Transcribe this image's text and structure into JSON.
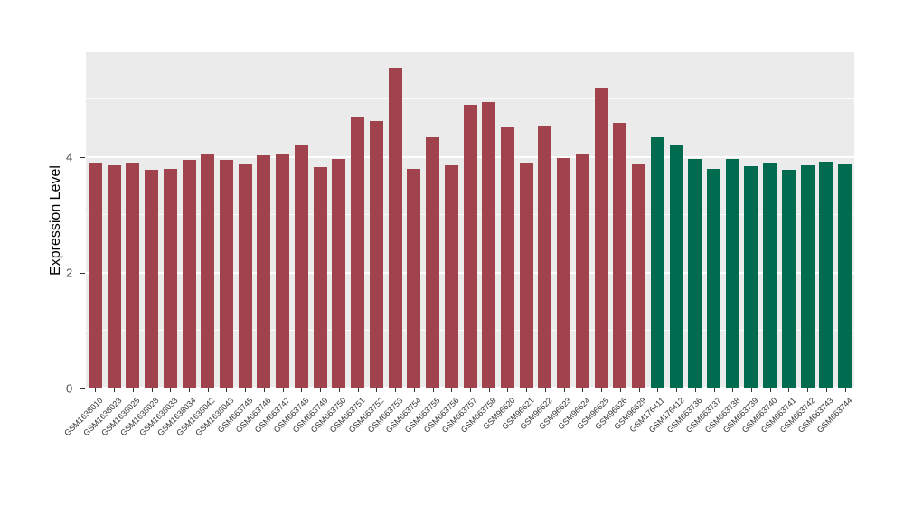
{
  "chart_data": {
    "type": "bar",
    "title": "",
    "xlabel": "",
    "ylabel": "Expression Level",
    "ylim": [
      0,
      5.8
    ],
    "yticks_major": [
      0,
      2,
      4
    ],
    "yticks_minor": [
      1,
      3,
      5
    ],
    "grid": true,
    "legend": "none",
    "panel_bg": "#EBEBEB",
    "grid_color": "#FFFFFF",
    "group_split_index": 30,
    "colors": {
      "group1": "#A0434D",
      "group2": "#006B4F"
    },
    "categories": [
      "GSM1638010",
      "GSM1638023",
      "GSM1638025",
      "GSM1638028",
      "GSM1638033",
      "GSM1638034",
      "GSM1638042",
      "GSM1638043",
      "GSM663745",
      "GSM663746",
      "GSM663747",
      "GSM663748",
      "GSM663749",
      "GSM663750",
      "GSM663751",
      "GSM663752",
      "GSM663753",
      "GSM663754",
      "GSM663755",
      "GSM663756",
      "GSM663757",
      "GSM663758",
      "GSM96620",
      "GSM96621",
      "GSM96622",
      "GSM96623",
      "GSM96624",
      "GSM96625",
      "GSM96626",
      "GSM96629",
      "GSM176411",
      "GSM176412",
      "GSM663736",
      "GSM663737",
      "GSM663738",
      "GSM663739",
      "GSM663740",
      "GSM663741",
      "GSM663742",
      "GSM663743",
      "GSM663744"
    ],
    "values": [
      3.9,
      3.86,
      3.9,
      3.78,
      3.8,
      3.95,
      4.07,
      3.95,
      3.88,
      4.03,
      4.05,
      4.2,
      3.83,
      3.97,
      4.7,
      4.62,
      5.55,
      3.8,
      4.35,
      3.86,
      4.9,
      4.95,
      4.52,
      3.9,
      4.53,
      3.98,
      4.07,
      5.2,
      4.6,
      3.87,
      4.35,
      4.2,
      3.97,
      3.8,
      3.97,
      3.85,
      3.9,
      3.78,
      3.86,
      3.92,
      3.88
    ]
  }
}
